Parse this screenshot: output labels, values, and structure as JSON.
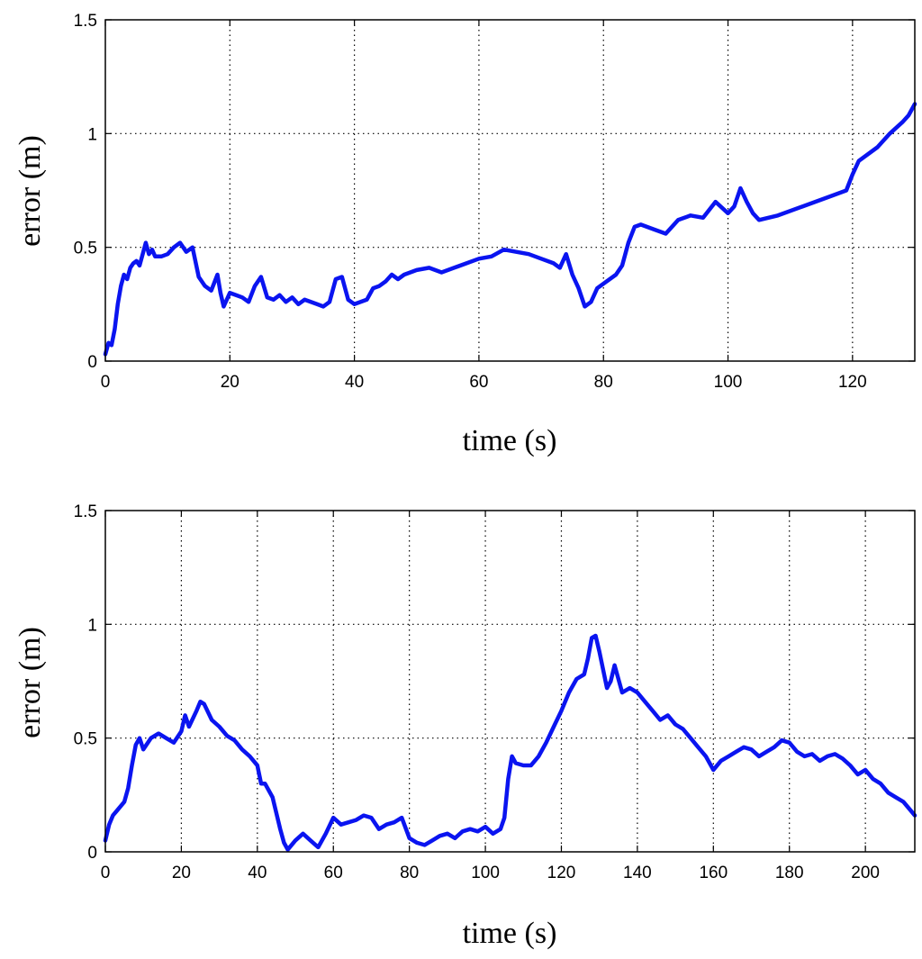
{
  "chart_data": [
    {
      "type": "line",
      "xlabel": "time (s)",
      "ylabel": "error (m)",
      "xlim": [
        0,
        130
      ],
      "ylim": [
        0,
        1.5
      ],
      "xticks": [
        0,
        20,
        40,
        60,
        80,
        100,
        120
      ],
      "yticks": [
        0,
        0.5,
        1,
        1.5
      ],
      "xtick_labels": [
        "0",
        "20",
        "40",
        "60",
        "80",
        "100",
        "120"
      ],
      "ytick_labels": [
        "0",
        "0.5",
        "1",
        "1.5"
      ],
      "grid": true,
      "line_color": "#0a14f0",
      "series": [
        {
          "x": [
            0,
            0.5,
            1,
            1.5,
            2,
            2.5,
            3,
            3.5,
            4,
            4.5,
            5,
            5.5,
            6,
            6.5,
            7,
            7.5,
            8,
            9,
            10,
            11,
            12,
            13,
            14,
            15,
            16,
            17,
            18,
            18.5,
            19,
            20,
            21,
            22,
            23,
            24,
            25,
            26,
            27,
            28,
            29,
            30,
            31,
            32,
            33,
            34,
            35,
            36,
            37,
            38,
            39,
            40,
            41,
            42,
            43,
            44,
            45,
            46,
            47,
            48,
            50,
            52,
            54,
            56,
            58,
            60,
            62,
            64,
            66,
            68,
            70,
            72,
            73,
            74,
            75,
            76,
            77,
            78,
            79,
            80,
            82,
            83,
            84,
            85,
            86,
            88,
            90,
            92,
            94,
            96,
            98,
            100,
            101,
            102,
            103,
            104,
            105,
            108,
            112,
            116,
            119,
            120,
            121,
            124,
            126,
            128,
            129,
            130
          ],
          "y": [
            0.03,
            0.08,
            0.07,
            0.14,
            0.25,
            0.33,
            0.38,
            0.36,
            0.41,
            0.43,
            0.44,
            0.42,
            0.47,
            0.52,
            0.47,
            0.49,
            0.46,
            0.46,
            0.47,
            0.5,
            0.52,
            0.48,
            0.5,
            0.37,
            0.33,
            0.31,
            0.38,
            0.3,
            0.24,
            0.3,
            0.29,
            0.28,
            0.26,
            0.33,
            0.37,
            0.28,
            0.27,
            0.29,
            0.26,
            0.28,
            0.25,
            0.27,
            0.26,
            0.25,
            0.24,
            0.26,
            0.36,
            0.37,
            0.27,
            0.25,
            0.26,
            0.27,
            0.32,
            0.33,
            0.35,
            0.38,
            0.36,
            0.38,
            0.4,
            0.41,
            0.39,
            0.41,
            0.43,
            0.45,
            0.46,
            0.49,
            0.48,
            0.47,
            0.45,
            0.43,
            0.41,
            0.47,
            0.38,
            0.32,
            0.24,
            0.26,
            0.32,
            0.34,
            0.38,
            0.42,
            0.52,
            0.59,
            0.6,
            0.58,
            0.56,
            0.62,
            0.64,
            0.63,
            0.7,
            0.65,
            0.68,
            0.76,
            0.7,
            0.65,
            0.62,
            0.64,
            0.68,
            0.72,
            0.75,
            0.82,
            0.88,
            0.94,
            1.0,
            1.05,
            1.08,
            1.13
          ]
        }
      ]
    },
    {
      "type": "line",
      "xlabel": "time (s)",
      "ylabel": "error (m)",
      "xlim": [
        0,
        213
      ],
      "ylim": [
        0,
        1.5
      ],
      "xticks": [
        0,
        20,
        40,
        60,
        80,
        100,
        120,
        140,
        160,
        180,
        200
      ],
      "yticks": [
        0,
        0.5,
        1,
        1.5
      ],
      "xtick_labels": [
        "0",
        "20",
        "40",
        "60",
        "80",
        "100",
        "120",
        "140",
        "160",
        "180",
        "200"
      ],
      "ytick_labels": [
        "0",
        "0.5",
        "1",
        "1.5"
      ],
      "grid": true,
      "line_color": "#0a14f0",
      "series": [
        {
          "x": [
            0,
            1,
            2,
            3,
            5,
            6,
            7,
            8,
            9,
            10,
            12,
            14,
            16,
            18,
            20,
            21,
            22,
            24,
            25,
            26,
            28,
            30,
            32,
            34,
            36,
            38,
            40,
            41,
            42,
            44,
            46,
            47,
            48,
            50,
            52,
            54,
            56,
            58,
            60,
            62,
            64,
            66,
            68,
            70,
            72,
            74,
            76,
            78,
            80,
            82,
            84,
            86,
            88,
            90,
            92,
            94,
            96,
            98,
            100,
            102,
            104,
            105,
            106,
            107,
            108,
            110,
            112,
            114,
            116,
            118,
            120,
            122,
            124,
            126,
            127,
            128,
            129,
            130,
            132,
            133,
            134,
            136,
            138,
            140,
            142,
            144,
            146,
            148,
            150,
            152,
            154,
            156,
            158,
            160,
            162,
            164,
            166,
            168,
            170,
            172,
            174,
            176,
            178,
            180,
            182,
            184,
            186,
            188,
            190,
            192,
            194,
            196,
            198,
            200,
            202,
            204,
            206,
            208,
            210,
            212,
            213
          ],
          "y": [
            0.05,
            0.12,
            0.16,
            0.18,
            0.22,
            0.28,
            0.38,
            0.47,
            0.5,
            0.45,
            0.5,
            0.52,
            0.5,
            0.48,
            0.53,
            0.6,
            0.55,
            0.62,
            0.66,
            0.65,
            0.58,
            0.55,
            0.51,
            0.49,
            0.45,
            0.42,
            0.38,
            0.3,
            0.3,
            0.24,
            0.1,
            0.04,
            0.01,
            0.05,
            0.08,
            0.05,
            0.02,
            0.08,
            0.15,
            0.12,
            0.13,
            0.14,
            0.16,
            0.15,
            0.1,
            0.12,
            0.13,
            0.15,
            0.06,
            0.04,
            0.03,
            0.05,
            0.07,
            0.08,
            0.06,
            0.09,
            0.1,
            0.09,
            0.11,
            0.08,
            0.1,
            0.15,
            0.32,
            0.42,
            0.39,
            0.38,
            0.38,
            0.42,
            0.48,
            0.55,
            0.62,
            0.7,
            0.76,
            0.78,
            0.85,
            0.94,
            0.95,
            0.88,
            0.72,
            0.75,
            0.82,
            0.7,
            0.72,
            0.7,
            0.66,
            0.62,
            0.58,
            0.6,
            0.56,
            0.54,
            0.5,
            0.46,
            0.42,
            0.36,
            0.4,
            0.42,
            0.44,
            0.46,
            0.45,
            0.42,
            0.44,
            0.46,
            0.49,
            0.48,
            0.44,
            0.42,
            0.43,
            0.4,
            0.42,
            0.43,
            0.41,
            0.38,
            0.34,
            0.36,
            0.32,
            0.3,
            0.26,
            0.24,
            0.22,
            0.18,
            0.16
          ]
        }
      ]
    }
  ]
}
